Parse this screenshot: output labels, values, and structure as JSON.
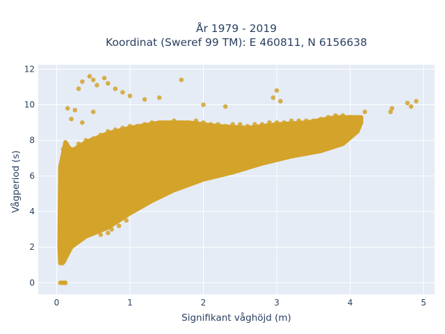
{
  "chart_data": {
    "type": "scatter",
    "title_line1": "År 1979 - 2019",
    "title_line2": "Koordinat (Sweref 99 TM): E 460811, N 6156638",
    "xlabel": "Signifikant våghöjd (m)",
    "ylabel": "Vågperiod (s)",
    "xlim": [
      -0.25,
      5.15
    ],
    "ylim": [
      -0.65,
      12.25
    ],
    "xticks": [
      0,
      1,
      2,
      3,
      4,
      5
    ],
    "yticks": [
      0,
      2,
      4,
      6,
      8,
      10,
      12
    ],
    "grid": true,
    "legend": "none",
    "colors": {
      "marker": "#d4a32a",
      "plot_bg": "#e5ecf6",
      "grid": "#ffffff"
    },
    "series": [
      {
        "points": [
          [
            0.05,
            0
          ],
          [
            0.07,
            0
          ],
          [
            0.09,
            0
          ],
          [
            0.11,
            0
          ],
          [
            0.12,
            0
          ],
          [
            0.05,
            1.6
          ],
          [
            0.07,
            1.3
          ],
          [
            0.08,
            1.1
          ],
          [
            0.1,
            1.2
          ],
          [
            0.12,
            1.4
          ],
          [
            0.06,
            2.0
          ],
          [
            0.08,
            2.5
          ],
          [
            0.1,
            3.0
          ],
          [
            0.12,
            3.5
          ],
          [
            0.15,
            4.0
          ],
          [
            0.08,
            6.5
          ],
          [
            0.1,
            7.0
          ],
          [
            0.12,
            7.8
          ],
          [
            0.09,
            7.5
          ],
          [
            0.13,
            6.8
          ],
          [
            0.2,
            2.2
          ],
          [
            0.3,
            2.5
          ],
          [
            0.4,
            2.8
          ],
          [
            0.5,
            3.0
          ],
          [
            0.6,
            3.2
          ],
          [
            0.2,
            7.5
          ],
          [
            0.3,
            7.8
          ],
          [
            0.4,
            8.0
          ],
          [
            0.5,
            8.1
          ],
          [
            0.6,
            8.3
          ],
          [
            0.7,
            3.3
          ],
          [
            0.8,
            3.6
          ],
          [
            0.9,
            3.9
          ],
          [
            1.0,
            4.2
          ],
          [
            1.1,
            4.4
          ],
          [
            0.7,
            8.5
          ],
          [
            0.8,
            8.6
          ],
          [
            0.9,
            8.7
          ],
          [
            1.0,
            8.8
          ],
          [
            1.1,
            8.8
          ],
          [
            1.2,
            4.6
          ],
          [
            1.3,
            4.8
          ],
          [
            1.4,
            5.0
          ],
          [
            1.5,
            5.2
          ],
          [
            1.6,
            5.4
          ],
          [
            1.2,
            8.9
          ],
          [
            1.3,
            9.0
          ],
          [
            1.4,
            9.0
          ],
          [
            1.5,
            9.0
          ],
          [
            1.6,
            9.1
          ],
          [
            1.7,
            5.5
          ],
          [
            1.8,
            5.7
          ],
          [
            1.9,
            5.8
          ],
          [
            2.0,
            6.0
          ],
          [
            2.1,
            6.1
          ],
          [
            1.7,
            9.0
          ],
          [
            1.8,
            9.0
          ],
          [
            1.9,
            9.1
          ],
          [
            2.0,
            9.0
          ],
          [
            2.1,
            8.9
          ],
          [
            2.2,
            6.2
          ],
          [
            2.3,
            6.3
          ],
          [
            2.4,
            6.4
          ],
          [
            2.5,
            6.5
          ],
          [
            2.6,
            6.6
          ],
          [
            2.2,
            8.9
          ],
          [
            2.3,
            8.8
          ],
          [
            2.4,
            8.9
          ],
          [
            2.5,
            8.9
          ],
          [
            2.6,
            8.8
          ],
          [
            2.7,
            6.8
          ],
          [
            2.8,
            6.9
          ],
          [
            2.9,
            7.0
          ],
          [
            3.0,
            7.1
          ],
          [
            3.1,
            7.2
          ],
          [
            2.7,
            8.9
          ],
          [
            2.8,
            8.9
          ],
          [
            2.9,
            9.0
          ],
          [
            3.0,
            9.0
          ],
          [
            3.1,
            9.0
          ],
          [
            3.2,
            7.3
          ],
          [
            3.3,
            7.4
          ],
          [
            3.4,
            7.5
          ],
          [
            3.5,
            7.6
          ],
          [
            3.6,
            7.7
          ],
          [
            3.2,
            9.1
          ],
          [
            3.3,
            9.1
          ],
          [
            3.4,
            9.1
          ],
          [
            3.5,
            9.1
          ],
          [
            3.6,
            9.2
          ],
          [
            3.7,
            7.8
          ],
          [
            3.8,
            8.0
          ],
          [
            3.9,
            8.2
          ],
          [
            4.0,
            8.5
          ],
          [
            4.1,
            8.8
          ],
          [
            3.7,
            9.3
          ],
          [
            3.8,
            9.4
          ],
          [
            3.9,
            9.4
          ],
          [
            4.0,
            9.3
          ],
          [
            4.2,
            9.6
          ],
          [
            3.0,
            10.8
          ],
          [
            2.95,
            10.4
          ],
          [
            3.05,
            10.2
          ],
          [
            0.3,
            10.9
          ],
          [
            0.35,
            11.3
          ],
          [
            0.45,
            11.6
          ],
          [
            0.5,
            11.4
          ],
          [
            0.55,
            11.1
          ],
          [
            0.65,
            11.5
          ],
          [
            0.7,
            11.2
          ],
          [
            0.8,
            10.9
          ],
          [
            0.9,
            10.7
          ],
          [
            1.0,
            10.5
          ],
          [
            1.7,
            11.4
          ],
          [
            1.2,
            10.3
          ],
          [
            1.4,
            10.4
          ],
          [
            2.0,
            10.0
          ],
          [
            2.3,
            9.9
          ],
          [
            4.55,
            9.6
          ],
          [
            4.57,
            9.8
          ],
          [
            4.78,
            10.1
          ],
          [
            4.83,
            9.9
          ],
          [
            4.9,
            10.2
          ],
          [
            0.15,
            9.8
          ],
          [
            0.25,
            9.7
          ],
          [
            0.2,
            9.2
          ],
          [
            0.35,
            9.0
          ],
          [
            0.5,
            9.6
          ],
          [
            0.6,
            2.7
          ],
          [
            0.7,
            2.8
          ],
          [
            0.75,
            3.0
          ],
          [
            0.85,
            3.2
          ],
          [
            0.95,
            3.5
          ]
        ]
      }
    ]
  }
}
